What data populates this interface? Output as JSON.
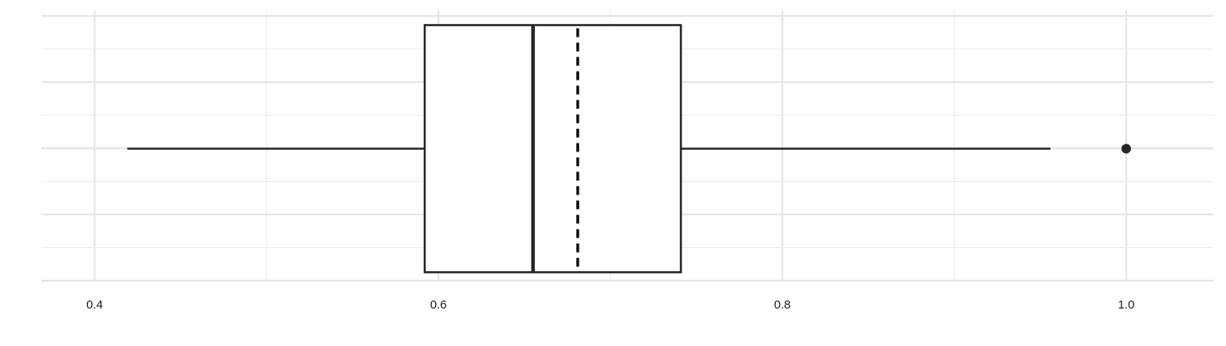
{
  "chart_data": {
    "type": "boxplot",
    "orientation": "horizontal",
    "xlim": [
      0.385,
      1.05
    ],
    "x_ticks": [
      0.4,
      0.6,
      0.8,
      1.0
    ],
    "x_tick_labels": [
      "0.4",
      "0.6",
      "0.8",
      "1.0"
    ],
    "grid": true,
    "boxes": [
      {
        "whisker_low": 0.419,
        "q1": 0.592,
        "median": 0.655,
        "mean": 0.681,
        "q3": 0.741,
        "whisker_high": 0.956,
        "outliers": [
          1.0
        ]
      }
    ],
    "colors": {
      "ink": "#262626",
      "grid": "#e5e5e5",
      "background": "#ffffff"
    }
  }
}
